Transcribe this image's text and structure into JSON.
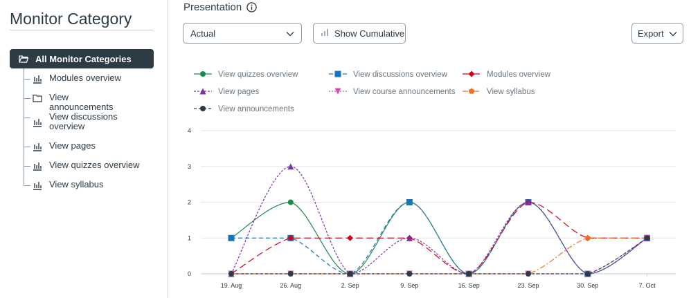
{
  "sidebar": {
    "title": "Monitor Category",
    "root_label": "All Monitor Categories",
    "items": [
      {
        "label": "Modules overview",
        "icon": "chart-icon"
      },
      {
        "label": "View announcements",
        "icon": "folder-icon"
      },
      {
        "label": "View discussions overview",
        "icon": "chart-icon"
      },
      {
        "label": "View pages",
        "icon": "chart-icon"
      },
      {
        "label": "View quizzes overview",
        "icon": "chart-icon"
      },
      {
        "label": "View syllabus",
        "icon": "chart-icon"
      }
    ]
  },
  "main": {
    "title": "Presentation",
    "select_value": "Actual",
    "cumulative_label": "Show Cumulative",
    "export_label": "Export"
  },
  "chart_data": {
    "type": "line",
    "categories": [
      "19. Aug",
      "26. Aug",
      "2. Sep",
      "9. Sep",
      "16. Sep",
      "23. Sep",
      "30. Sep",
      "7. Oct"
    ],
    "ylim": [
      0,
      4
    ],
    "yticks": [
      0,
      1,
      2,
      3,
      4
    ],
    "grid": true,
    "legend_position": "top",
    "series": [
      {
        "name": "View quizzes overview",
        "color": "#1a8a4a",
        "dash": "",
        "marker": "circle",
        "values": [
          1,
          2,
          0,
          2,
          0,
          2,
          0,
          1
        ]
      },
      {
        "name": "View discussions overview",
        "color": "#1b74b8",
        "dash": "6,4",
        "marker": "square",
        "values": [
          1,
          1,
          0,
          2,
          0,
          2,
          0,
          1
        ]
      },
      {
        "name": "Modules overview",
        "color": "#d0021b",
        "dash": "10,5",
        "marker": "diamond",
        "values": [
          0,
          1,
          1,
          1,
          0,
          2,
          1,
          1
        ]
      },
      {
        "name": "View pages",
        "color": "#7b2fa8",
        "dash": "3,2",
        "marker": "triangle",
        "values": [
          0,
          3,
          0,
          1,
          0,
          2,
          0,
          1
        ]
      },
      {
        "name": "View course announcements",
        "color": "#c94fb0",
        "dash": "2,2",
        "marker": "triangle-down",
        "values": [
          0,
          0,
          0,
          0,
          0,
          0,
          0,
          1
        ]
      },
      {
        "name": "View syllabus",
        "color": "#f26e21",
        "dash": "8,3,2,3",
        "marker": "pentagon",
        "values": [
          0,
          0,
          0,
          0,
          0,
          0,
          1,
          1
        ]
      },
      {
        "name": "View announcements",
        "color": "#2d3b45",
        "dash": "4,3",
        "marker": "circle",
        "values": [
          0,
          0,
          0,
          0,
          0,
          0,
          0,
          1
        ]
      }
    ]
  }
}
